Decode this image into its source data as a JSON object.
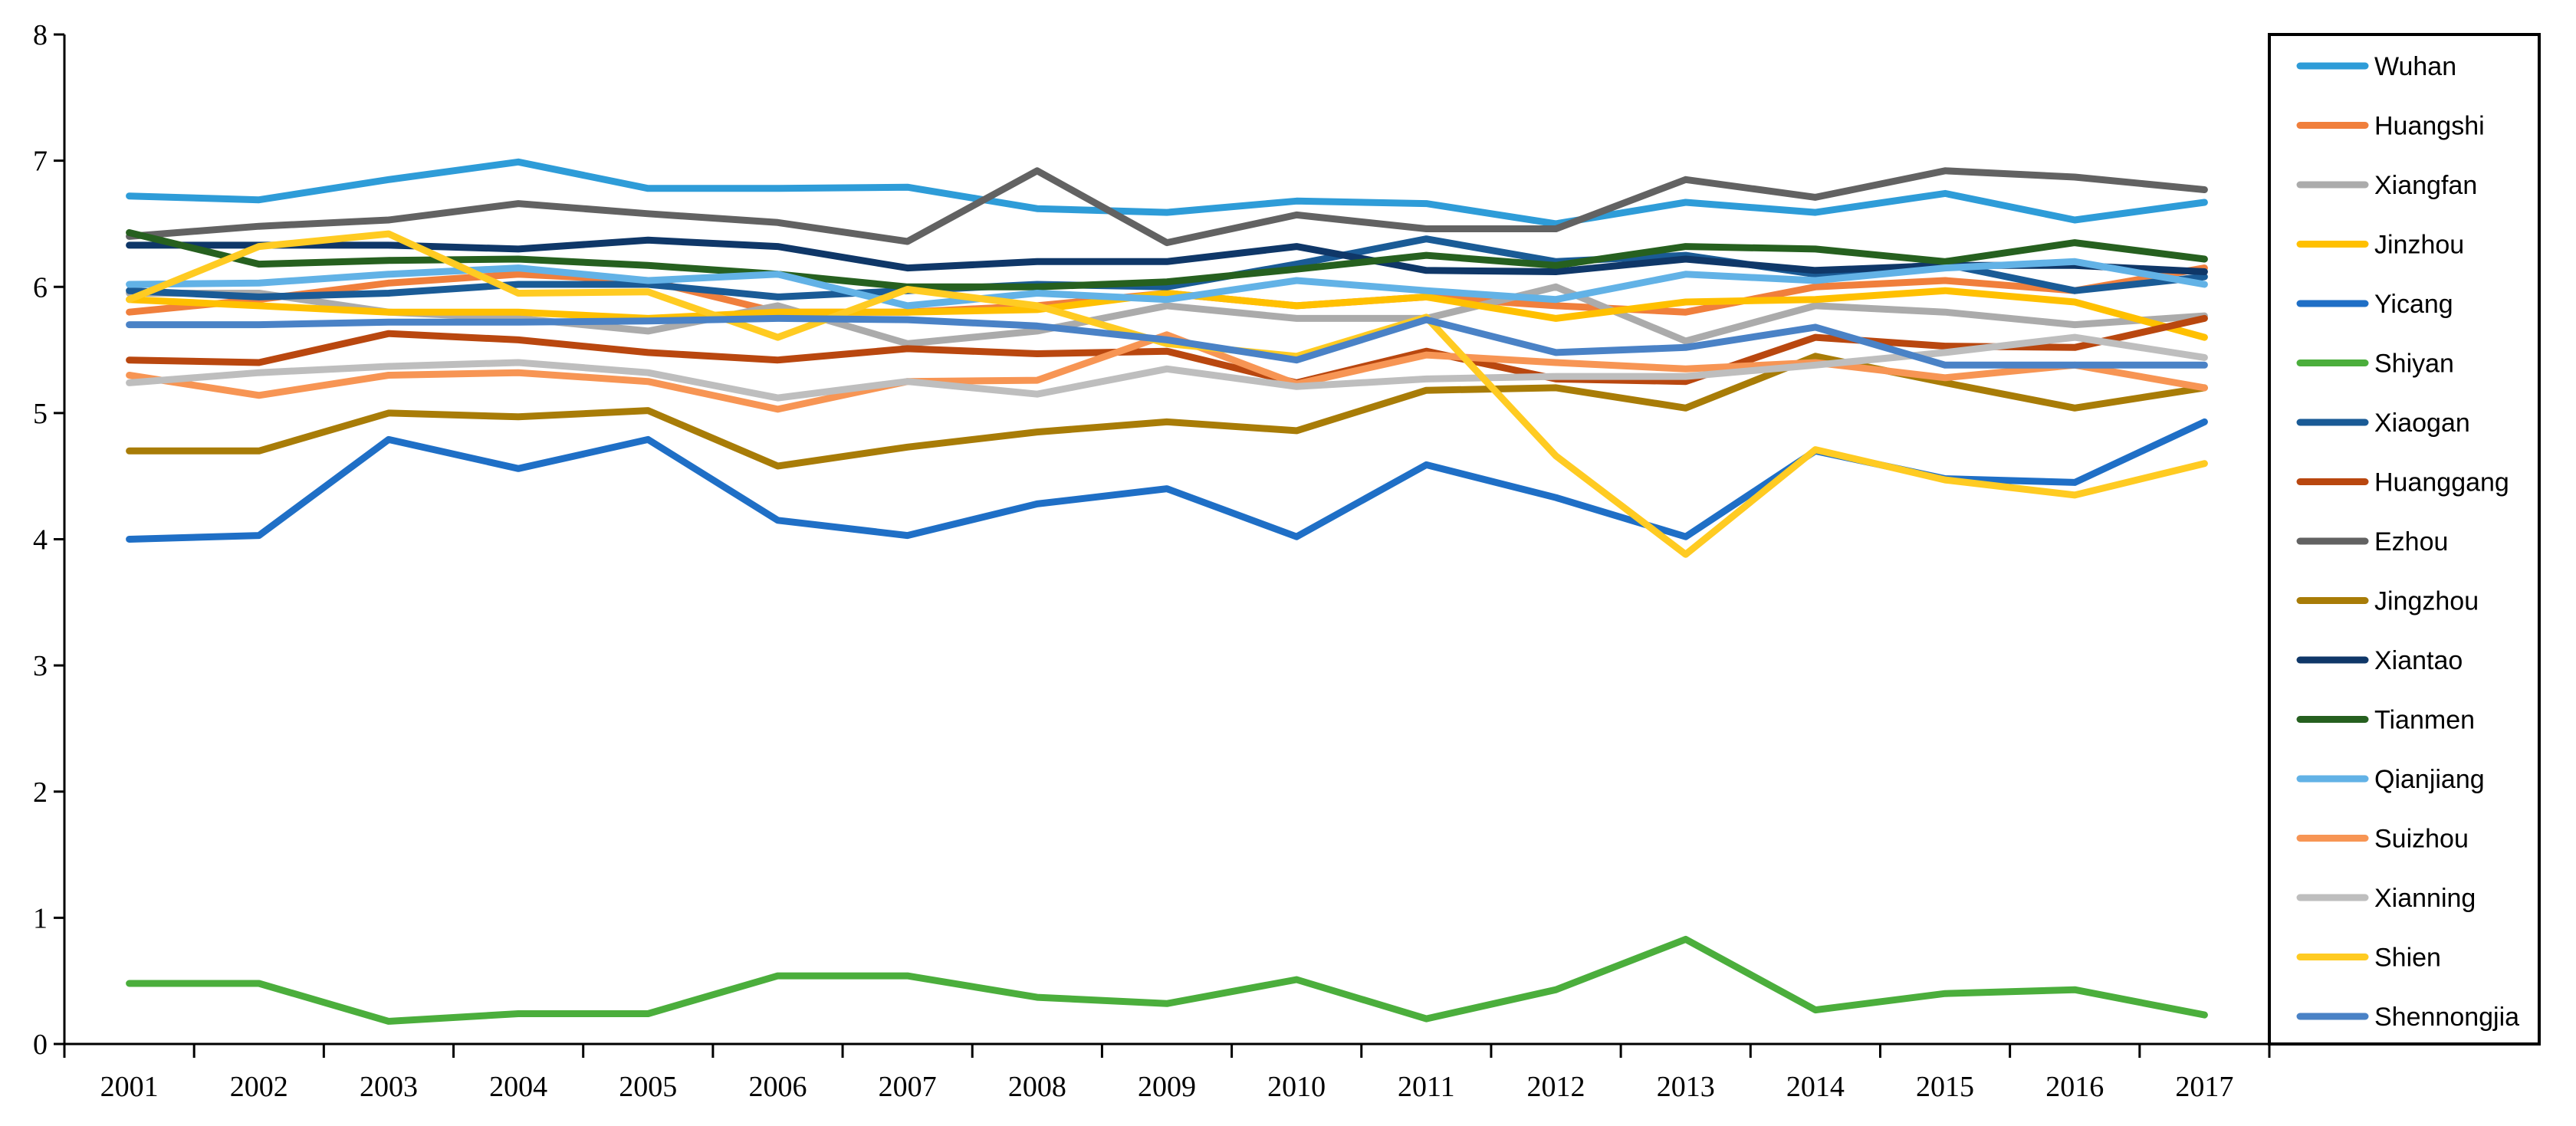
{
  "chart_data": {
    "type": "line",
    "title": "",
    "xlabel": "",
    "ylabel": "",
    "ylim": [
      0,
      8
    ],
    "yticks": [
      "0",
      "1",
      "2",
      "3",
      "4",
      "5",
      "6",
      "7",
      "8"
    ],
    "categories": [
      "2001",
      "2002",
      "2003",
      "2004",
      "2005",
      "2006",
      "2007",
      "2008",
      "2009",
      "2010",
      "2011",
      "2012",
      "2013",
      "2014",
      "2015",
      "2016",
      "2017"
    ],
    "legend_position": "right",
    "series": [
      {
        "name": "Wuhan",
        "color": "#2E9CD8",
        "values": [
          6.72,
          6.69,
          6.85,
          6.99,
          6.78,
          6.78,
          6.79,
          6.62,
          6.59,
          6.68,
          6.66,
          6.5,
          6.67,
          6.59,
          6.74,
          6.53,
          6.67
        ]
      },
      {
        "name": "Huangshi",
        "color": "#F07F3C",
        "values": [
          5.8,
          5.9,
          6.03,
          6.1,
          6.05,
          5.8,
          5.8,
          5.85,
          5.95,
          5.85,
          5.92,
          5.85,
          5.8,
          6.0,
          6.05,
          5.97,
          6.15
        ]
      },
      {
        "name": "Xiangfan",
        "color": "#ABABAB",
        "values": [
          5.95,
          5.95,
          5.8,
          5.75,
          5.65,
          5.85,
          5.55,
          5.65,
          5.85,
          5.75,
          5.75,
          6.0,
          5.57,
          5.85,
          5.8,
          5.7,
          5.77
        ]
      },
      {
        "name": "Jinzhou",
        "color": "#FFC000",
        "values": [
          5.9,
          5.85,
          5.8,
          5.8,
          5.75,
          5.8,
          5.8,
          5.82,
          5.95,
          5.85,
          5.92,
          5.75,
          5.88,
          5.9,
          5.97,
          5.88,
          5.6
        ]
      },
      {
        "name": "Yicang",
        "color": "#1F6FC6",
        "values": [
          4.0,
          4.03,
          4.79,
          4.56,
          4.79,
          4.15,
          4.03,
          4.28,
          4.4,
          4.02,
          4.59,
          4.33,
          4.02,
          4.7,
          4.48,
          4.45,
          4.93
        ]
      },
      {
        "name": "Shiyan",
        "color": "#4BAE3C",
        "values": [
          0.48,
          0.48,
          0.18,
          0.24,
          0.24,
          0.54,
          0.54,
          0.37,
          0.32,
          0.51,
          0.2,
          0.43,
          0.83,
          0.27,
          0.4,
          0.43,
          0.23
        ]
      },
      {
        "name": "Xiaogan",
        "color": "#1A5B96",
        "values": [
          5.97,
          5.92,
          5.95,
          6.02,
          6.02,
          5.92,
          5.97,
          6.02,
          6.0,
          6.18,
          6.38,
          6.2,
          6.25,
          6.1,
          6.18,
          5.97,
          6.08
        ]
      },
      {
        "name": "Huanggang",
        "color": "#B9470F",
        "values": [
          5.42,
          5.4,
          5.63,
          5.58,
          5.48,
          5.42,
          5.51,
          5.47,
          5.49,
          5.24,
          5.49,
          5.27,
          5.25,
          5.6,
          5.53,
          5.52,
          5.75
        ]
      },
      {
        "name": "Ezhou",
        "color": "#626262",
        "values": [
          6.4,
          6.48,
          6.53,
          6.66,
          6.58,
          6.51,
          6.36,
          6.92,
          6.35,
          6.57,
          6.46,
          6.46,
          6.85,
          6.71,
          6.92,
          6.87,
          6.77
        ]
      },
      {
        "name": "Jingzhou",
        "color": "#A87C07",
        "values": [
          4.7,
          4.7,
          5.0,
          4.97,
          5.02,
          4.58,
          4.73,
          4.85,
          4.93,
          4.86,
          5.18,
          5.2,
          5.04,
          5.45,
          5.24,
          5.04,
          5.2
        ]
      },
      {
        "name": "Xiantao",
        "color": "#0F3768",
        "values": [
          6.33,
          6.33,
          6.33,
          6.3,
          6.37,
          6.32,
          6.15,
          6.2,
          6.2,
          6.32,
          6.13,
          6.12,
          6.22,
          6.13,
          6.17,
          6.17,
          6.12
        ]
      },
      {
        "name": "Tianmen",
        "color": "#26601F",
        "values": [
          6.43,
          6.18,
          6.21,
          6.22,
          6.17,
          6.1,
          6.0,
          6.0,
          6.04,
          6.14,
          6.25,
          6.17,
          6.32,
          6.3,
          6.2,
          6.35,
          6.22
        ]
      },
      {
        "name": "Qianjiang",
        "color": "#62B2E6",
        "values": [
          6.02,
          6.03,
          6.1,
          6.15,
          6.05,
          6.1,
          5.85,
          5.95,
          5.9,
          6.05,
          5.97,
          5.9,
          6.1,
          6.05,
          6.15,
          6.2,
          6.02
        ]
      },
      {
        "name": "Suizhou",
        "color": "#F79554",
        "values": [
          5.3,
          5.14,
          5.3,
          5.32,
          5.25,
          5.03,
          5.25,
          5.26,
          5.62,
          5.23,
          5.46,
          5.4,
          5.35,
          5.4,
          5.28,
          5.38,
          5.2
        ]
      },
      {
        "name": "Xianning",
        "color": "#BEBEBE",
        "values": [
          5.24,
          5.32,
          5.37,
          5.4,
          5.32,
          5.12,
          5.25,
          5.15,
          5.35,
          5.21,
          5.27,
          5.29,
          5.29,
          5.38,
          5.48,
          5.6,
          5.44
        ]
      },
      {
        "name": "Shien",
        "color": "#FFCB22",
        "values": [
          5.9,
          6.32,
          6.42,
          5.95,
          5.96,
          5.6,
          5.98,
          5.85,
          5.55,
          5.45,
          5.76,
          4.66,
          3.88,
          4.71,
          4.47,
          4.35,
          4.6
        ]
      },
      {
        "name": "Shennongjia",
        "color": "#4A82C6",
        "values": [
          5.7,
          5.7,
          5.72,
          5.72,
          5.73,
          5.75,
          5.74,
          5.69,
          5.58,
          5.42,
          5.74,
          5.48,
          5.52,
          5.68,
          5.38,
          5.38,
          5.38
        ]
      }
    ]
  }
}
